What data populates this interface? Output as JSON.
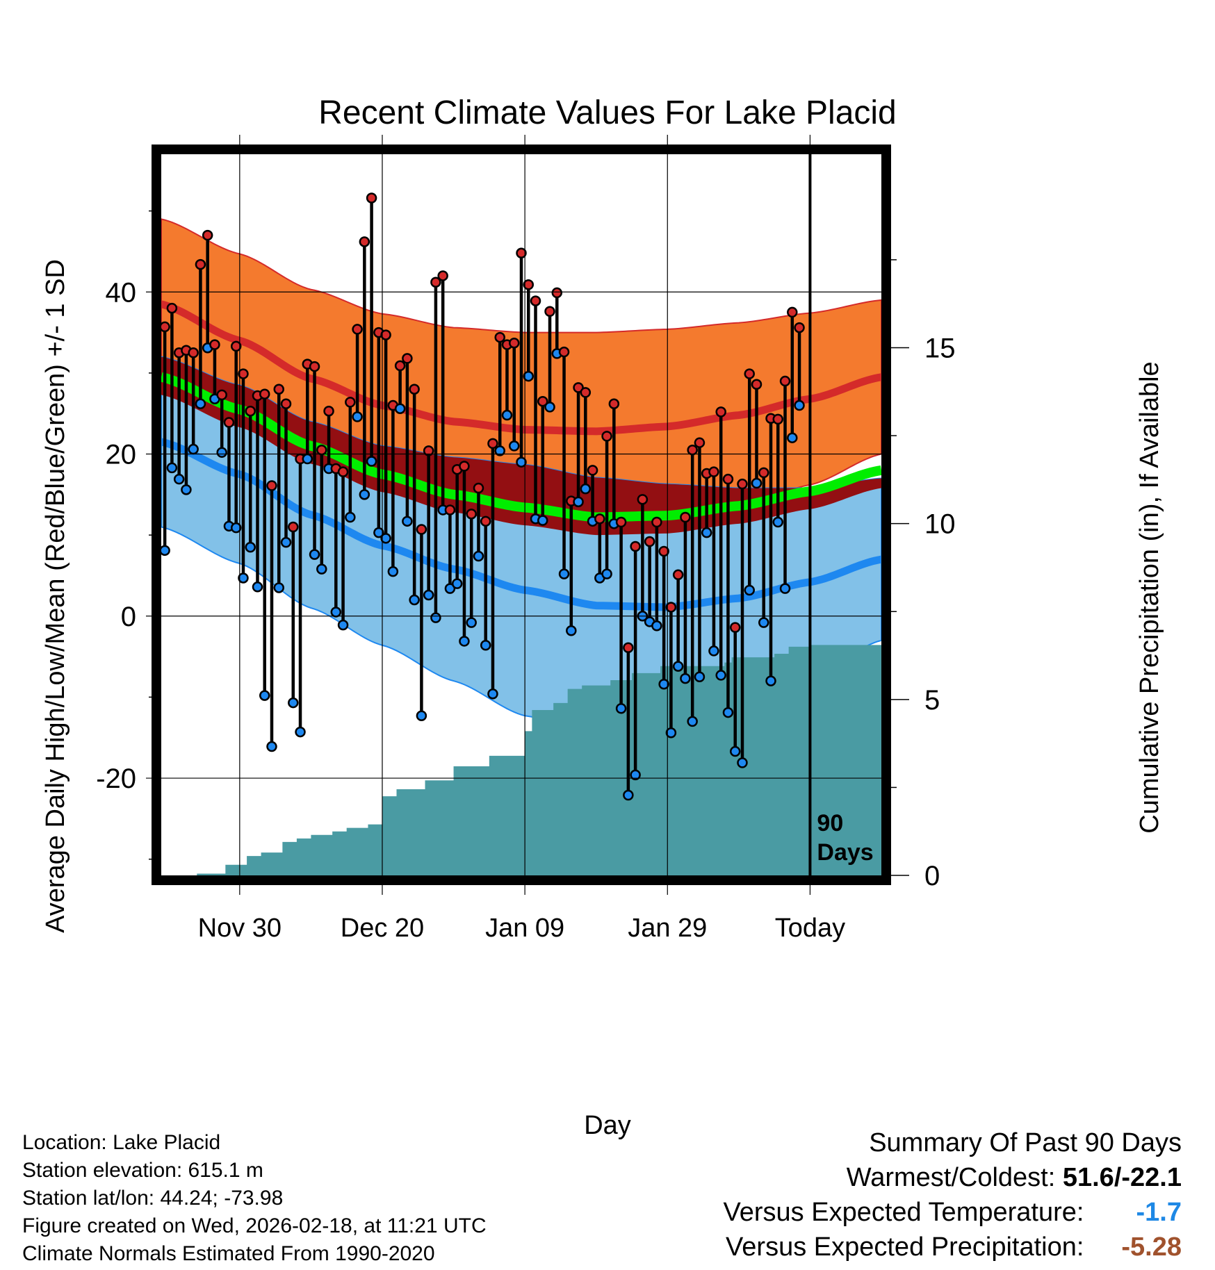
{
  "chart_data": {
    "type": "line",
    "title": "Recent Climate Values For Lake Placid",
    "xlabel": "Day",
    "ylabel": "Average Daily High/Low/Mean (Red/Blue/Green) +/- 1 SD",
    "y2label": "Cumulative Precipitation (in), If Available",
    "xlim": [
      -11,
      90
    ],
    "ylim": [
      -32,
      57
    ],
    "y2lim": [
      0,
      20.5
    ],
    "today_x": 80,
    "x_ticks": [
      {
        "x": 0,
        "label": "Nov 30"
      },
      {
        "x": 20,
        "label": "Dec 20"
      },
      {
        "x": 40,
        "label": "Jan 09"
      },
      {
        "x": 60,
        "label": "Jan 29"
      },
      {
        "x": 80,
        "label": "Today"
      }
    ],
    "y_ticks": [
      {
        "v": -20,
        "label": "-20"
      },
      {
        "v": 0,
        "label": "0"
      },
      {
        "v": 20,
        "label": "20"
      },
      {
        "v": 40,
        "label": "40"
      }
    ],
    "y2_ticks": [
      {
        "v": 0,
        "label": "0"
      },
      {
        "v": 5,
        "label": "5"
      },
      {
        "v": 10,
        "label": "10"
      },
      {
        "v": 15,
        "label": "15"
      }
    ],
    "today_label": "90 Days",
    "normals": {
      "x": [
        -11,
        0,
        10,
        20,
        30,
        40,
        50,
        60,
        70,
        80,
        90
      ],
      "high_mean": [
        38.5,
        34.0,
        29.3,
        26.0,
        24.0,
        23.0,
        22.8,
        23.4,
        24.8,
        26.8,
        29.5
      ],
      "high_sd": [
        10.5,
        10.7,
        11.0,
        11.3,
        11.6,
        12.0,
        12.2,
        12.0,
        11.4,
        10.6,
        9.5
      ],
      "mean_mean": [
        29.5,
        25.5,
        21.0,
        17.5,
        15.0,
        13.4,
        12.2,
        12.4,
        13.6,
        15.4,
        18.0
      ],
      "low_mean": [
        21.5,
        17.5,
        12.5,
        8.7,
        5.8,
        3.2,
        1.3,
        1.1,
        2.2,
        4.2,
        7.0
      ],
      "low_sd": [
        10.5,
        11.0,
        11.5,
        12.3,
        13.8,
        15.5,
        15.8,
        15.2,
        13.6,
        11.6,
        10.0
      ]
    },
    "series": [
      {
        "name": "Daily High",
        "values": [
          35.7,
          38.0,
          32.5,
          32.8,
          32.5,
          43.4,
          47.0,
          33.5,
          27.3,
          23.9,
          33.3,
          29.9,
          25.3,
          27.2,
          27.4,
          16.1,
          28.0,
          26.2,
          11.0,
          19.4,
          31.1,
          30.8,
          20.5,
          25.3,
          18.2,
          17.8,
          26.4,
          35.4,
          46.2,
          51.6,
          35.0,
          34.7,
          26.0,
          30.9,
          31.8,
          28.0,
          10.7,
          20.4,
          41.2,
          42.0,
          13.1,
          18.1,
          18.5,
          12.6,
          15.8,
          11.7,
          21.3,
          34.4,
          33.5,
          33.7,
          44.8,
          40.9,
          38.9,
          26.5,
          37.6,
          39.9,
          32.6,
          14.2,
          28.2,
          27.6,
          18.0,
          12.0,
          22.2,
          26.2,
          11.6,
          -3.9,
          8.6,
          14.4,
          9.2,
          11.6,
          8.0,
          1.1,
          5.1,
          12.2,
          20.5,
          21.4,
          17.6,
          17.8,
          25.2,
          16.9,
          -1.4,
          16.3,
          29.9,
          28.6,
          17.7,
          24.4,
          24.3,
          29.0,
          37.5,
          35.6
        ]
      },
      {
        "name": "Daily Low",
        "values": [
          8.1,
          18.3,
          16.9,
          15.6,
          20.6,
          26.2,
          33.1,
          26.8,
          20.2,
          11.1,
          10.9,
          4.7,
          8.5,
          3.6,
          -9.8,
          -16.1,
          3.5,
          9.1,
          -10.7,
          -14.3,
          19.4,
          7.6,
          5.8,
          18.2,
          0.5,
          -1.1,
          12.2,
          24.6,
          15.0,
          19.1,
          10.3,
          9.6,
          5.5,
          25.6,
          11.7,
          2.0,
          -12.3,
          2.6,
          -0.2,
          13.1,
          3.4,
          4.0,
          -3.1,
          -0.8,
          7.4,
          -3.6,
          -9.6,
          20.4,
          24.8,
          21.0,
          19.0,
          29.6,
          12.0,
          11.8,
          25.8,
          32.4,
          5.2,
          -1.8,
          14.1,
          15.7,
          11.7,
          4.7,
          5.2,
          11.4,
          -11.4,
          -22.1,
          -19.6,
          0.0,
          -0.7,
          -1.2,
          -8.4,
          -14.4,
          -6.2,
          -7.7,
          -13.0,
          -7.5,
          10.3,
          -4.3,
          -7.3,
          -11.9,
          -16.7,
          -18.1,
          3.2,
          16.4,
          -0.8,
          -8.0,
          11.6,
          3.4,
          22.0,
          26.0
        ]
      }
    ],
    "precip_cumulative": {
      "x": [
        -11,
        -6,
        -2,
        1,
        3,
        6,
        8,
        10,
        13,
        15,
        18,
        20,
        22,
        26,
        30,
        35,
        40,
        41,
        44,
        46,
        48,
        52,
        55,
        59,
        68,
        69,
        75,
        77,
        80,
        90
      ],
      "values": [
        0,
        0.05,
        0.3,
        0.55,
        0.65,
        0.95,
        1.05,
        1.15,
        1.25,
        1.35,
        1.45,
        2.25,
        2.45,
        2.7,
        3.1,
        3.4,
        4.1,
        4.7,
        4.9,
        5.3,
        5.4,
        5.55,
        5.75,
        5.95,
        6.05,
        6.2,
        6.3,
        6.5,
        6.55,
        6.6
      ]
    }
  },
  "footer": {
    "location": "Location: Lake Placid",
    "elevation": "Station elevation: 615.1 m",
    "latlon": "Station lat/lon: 44.24; -73.98",
    "created": "Figure created on Wed, 2026-02-18, at 11:21 UTC",
    "normals": "Climate Normals Estimated From 1990-2020"
  },
  "summary": {
    "title": "Summary Of Past 90 Days",
    "warm_cold_label": "Warmest/Coldest:",
    "warm_cold_value": "51.6/-22.1",
    "temp_label": "Versus Expected Temperature:",
    "temp_value": "-1.7",
    "precip_label": "Versus Expected Precipitation:",
    "precip_value": "-5.28",
    "colors": {
      "temp": "#1e88e5",
      "precip": "#a0522d"
    }
  },
  "colors": {
    "high_band": "#f47a2e",
    "high_line": "#d42a2a",
    "mean_band": "#930f12",
    "mean_line": "#00ee00",
    "low_band": "#82c1e8",
    "low_line": "#1e88f0",
    "precip": "#4a9ba3",
    "high_dot": "#d42a2a",
    "low_dot": "#1e88f0"
  }
}
